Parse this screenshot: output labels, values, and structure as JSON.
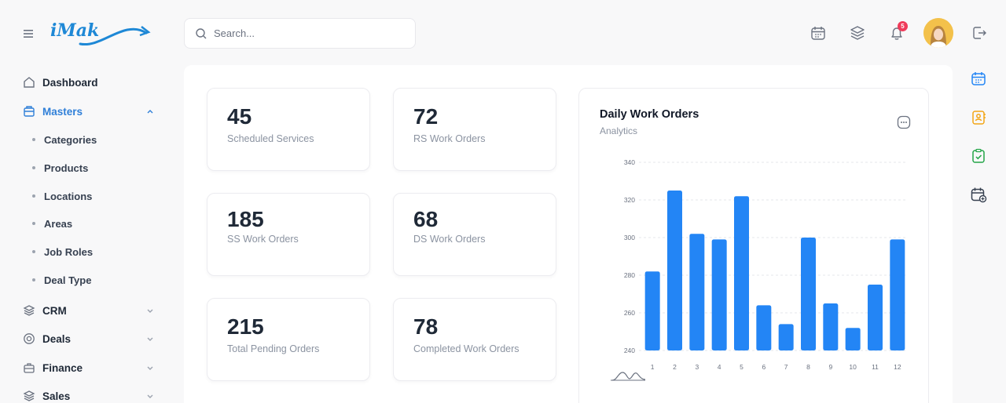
{
  "brand": {
    "logo_text": "iMak"
  },
  "search": {
    "placeholder": "Search..."
  },
  "notifications": {
    "count": "5"
  },
  "sidebar": {
    "items": [
      {
        "label": "Dashboard"
      },
      {
        "label": "Masters"
      },
      {
        "label": "CRM"
      },
      {
        "label": "Deals"
      },
      {
        "label": "Finance"
      },
      {
        "label": "Sales"
      }
    ],
    "masters_sub": [
      "Categories",
      "Products",
      "Locations",
      "Areas",
      "Job Roles",
      "Deal Type"
    ]
  },
  "stats": [
    {
      "value": "45",
      "label": "Scheduled Services"
    },
    {
      "value": "72",
      "label": "RS Work Orders"
    },
    {
      "value": "185",
      "label": "SS Work Orders"
    },
    {
      "value": "68",
      "label": "DS Work Orders"
    },
    {
      "value": "215",
      "label": "Total Pending Orders"
    },
    {
      "value": "78",
      "label": "Completed Work Orders"
    }
  ],
  "chart": {
    "title": "Daily Work Orders",
    "subtitle": "Analytics"
  },
  "chart_data": {
    "type": "bar",
    "title": "Daily Work Orders",
    "subtitle": "Analytics",
    "categories": [
      "1",
      "2",
      "3",
      "4",
      "5",
      "6",
      "7",
      "8",
      "9",
      "10",
      "11",
      "12"
    ],
    "values": [
      282,
      325,
      302,
      299,
      322,
      264,
      254,
      300,
      265,
      252,
      275,
      299
    ],
    "ylim": [
      240,
      340
    ],
    "yticks": [
      240,
      260,
      280,
      300,
      320,
      340
    ],
    "grid": true,
    "color": "#2385f5"
  },
  "colors": {
    "accent": "#2f7fd8",
    "bar": "#2385f5",
    "badge": "#ef3b5a"
  }
}
